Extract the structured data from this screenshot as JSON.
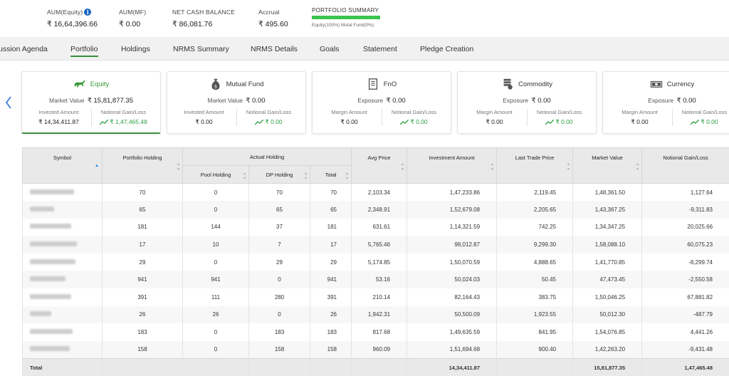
{
  "summary": {
    "aum_equity": {
      "label": "AUM(Equity)",
      "value": "₹ 16,64,396.66"
    },
    "aum_mf": {
      "label": "AUM(MF)",
      "value": "₹ 0.00"
    },
    "net_cash": {
      "label": "NET CASH BALANCE",
      "value": "₹ 86,081.76"
    },
    "accrual": {
      "label": "Accrual",
      "value": "₹ 495.60"
    },
    "portfolio_summary": {
      "label": "PORTFOLIO SUMMARY",
      "legend": "Equity(100%)    Mutal Fund(0%)",
      "equity_pct": 100
    }
  },
  "tabs": [
    "ussion Agenda",
    "Portfolio",
    "Holdings",
    "NRMS Summary",
    "NRMS Details",
    "Goals",
    "Statement",
    "Pledge Creation"
  ],
  "active_tab": "Portfolio",
  "cards": [
    {
      "title": "Equity",
      "icon": "bull-icon",
      "main_label": "Market Value",
      "main_value": "₹ 15,81,877.35",
      "left_label": "Invested Amount",
      "left_value": "₹ 14,34,411.87",
      "right_label": "Notional Gain/Loss",
      "right_value": "₹ 1,47,465.48"
    },
    {
      "title": "Mutual Fund",
      "icon": "money-bag-icon",
      "main_label": "Market Value",
      "main_value": "₹ 0.00",
      "left_label": "Invested Amount",
      "left_value": "₹ 0.00",
      "right_label": "Notional Gain/Loss",
      "right_value": "₹ 0.00"
    },
    {
      "title": "FnO",
      "icon": "document-icon",
      "main_label": "Exposure",
      "main_value": "₹ 0.00",
      "left_label": "Margin Amount",
      "left_value": "₹ 0.00",
      "right_label": "Notional Gain/Loss",
      "right_value": "₹ 0.00"
    },
    {
      "title": "Commodity",
      "icon": "commodity-icon",
      "main_label": "Exposure",
      "main_value": "₹ 0.00",
      "left_label": "Margin Amount",
      "left_value": "₹ 0.00",
      "right_label": "Notional Gain/Loss",
      "right_value": "₹ 0.00"
    },
    {
      "title": "Currency",
      "icon": "banknote-icon",
      "main_label": "Exposure",
      "main_value": "₹ 0.00",
      "left_label": "Margin Amount",
      "left_value": "₹ 0.00",
      "right_label": "Notional Gain/Loss",
      "right_value": "₹ 0.00"
    }
  ],
  "table": {
    "headers": {
      "symbol": "Symbol",
      "portfolio_holding": "Portfolio Holding",
      "actual_holding": "Actual Holding",
      "pool_holding": "Pool Holding",
      "dp_holding": "DP Holding",
      "total": "Total",
      "avg_price": "Avg Price",
      "investment_amount": "Investment Amount",
      "last_trade_price": "Last Trade Price",
      "market_value": "Market Value",
      "notional_gain_loss": "Notional Gain/Loss"
    },
    "rows": [
      [
        "70",
        "0",
        "70",
        "70",
        "2,103.34",
        "1,47,233.86",
        "2,119.45",
        "1,48,361.50",
        "1,127.64"
      ],
      [
        "65",
        "0",
        "65",
        "65",
        "2,348.91",
        "1,52,679.08",
        "2,205.65",
        "1,43,367.25",
        "-9,311.83"
      ],
      [
        "181",
        "144",
        "37",
        "181",
        "631.61",
        "1,14,321.59",
        "742.25",
        "1,34,347.25",
        "20,025.66"
      ],
      [
        "17",
        "10",
        "7",
        "17",
        "5,765.46",
        "98,012.87",
        "9,299.30",
        "1,58,088.10",
        "60,075.23"
      ],
      [
        "29",
        "0",
        "29",
        "29",
        "5,174.85",
        "1,50,070.59",
        "4,888.65",
        "1,41,770.85",
        "-8,299.74"
      ],
      [
        "941",
        "941",
        "0",
        "941",
        "53.16",
        "50,024.03",
        "50.45",
        "47,473.45",
        "-2,550.58"
      ],
      [
        "391",
        "111",
        "280",
        "391",
        "210.14",
        "82,164.43",
        "383.75",
        "1,50,046.25",
        "67,881.82"
      ],
      [
        "26",
        "26",
        "0",
        "26",
        "1,942.31",
        "50,500.09",
        "1,923.55",
        "50,012.30",
        "-487.79"
      ],
      [
        "183",
        "0",
        "183",
        "183",
        "817.68",
        "1,49,635.59",
        "841.95",
        "1,54,076.85",
        "4,441.26"
      ],
      [
        "158",
        "0",
        "158",
        "158",
        "960.09",
        "1,51,694.68",
        "900.40",
        "1,42,263.20",
        "-9,431.48"
      ]
    ],
    "total_row": {
      "label": "Total",
      "investment_amount": "14,34,411.87",
      "market_value": "15,81,877.35",
      "notional_gain_loss": "1,47,465.48"
    }
  },
  "colors": {
    "accent_green": "#3a9a3a",
    "progress_green": "#3cc44f",
    "gain_green": "#2ea043",
    "info_blue": "#1565c0",
    "header_gray": "#e9e9e9"
  }
}
